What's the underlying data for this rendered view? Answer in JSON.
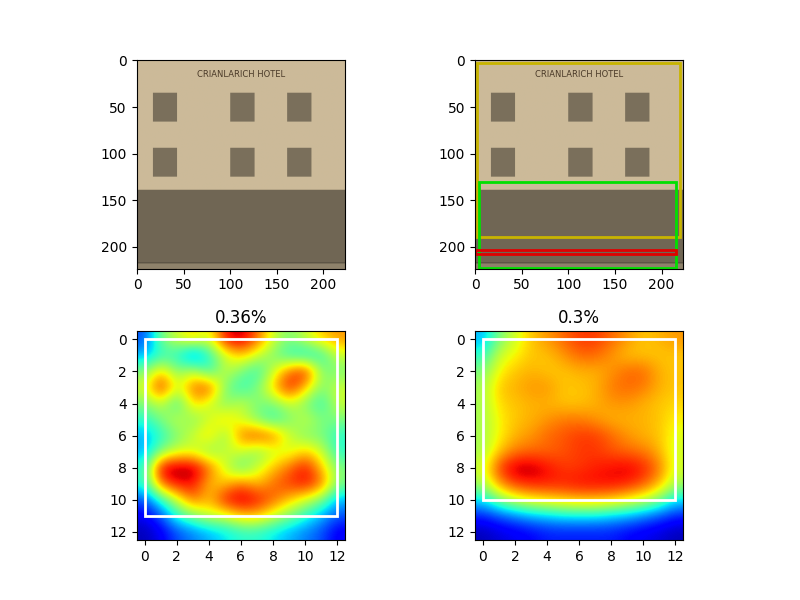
{
  "chart_data": [
    {
      "type": "image",
      "image_text": "CRIANLARICH HOTEL",
      "xlim": [
        -0.5,
        223.5
      ],
      "ylim": [
        223.5,
        -0.5
      ],
      "xticks": [
        0,
        50,
        100,
        150,
        200
      ],
      "yticks": [
        0,
        50,
        100,
        150,
        200
      ],
      "boxes": []
    },
    {
      "type": "image",
      "image_text": "CRIANLARICH HOTEL",
      "xlim": [
        -0.5,
        223.5
      ],
      "ylim": [
        223.5,
        -0.5
      ],
      "xticks": [
        0,
        50,
        100,
        150,
        200
      ],
      "yticks": [
        0,
        50,
        100,
        150,
        200
      ],
      "boxes": [
        {
          "x0": 2,
          "y0": 3,
          "x1": 220,
          "y1": 190,
          "color": "#c8b400"
        },
        {
          "x0": 4,
          "y0": 130,
          "x1": 215,
          "y1": 223,
          "color": "#00e000"
        },
        {
          "x0": 0,
          "y0": 203,
          "x1": 215,
          "y1": 208,
          "color": "#e00000"
        }
      ]
    },
    {
      "type": "heatmap",
      "title": "0.36%",
      "xlim": [
        -0.5,
        12.5
      ],
      "ylim": [
        12.5,
        -0.5
      ],
      "xticks": [
        0,
        2,
        4,
        6,
        8,
        10,
        12
      ],
      "yticks": [
        0,
        2,
        4,
        6,
        8,
        10,
        12
      ],
      "color_range": [
        0,
        1
      ],
      "rectangle": {
        "x0": 0,
        "y0": 0,
        "x1": 12,
        "y1": 11,
        "color": "white"
      },
      "cells": [
        [
          0.2,
          0.5,
          0.6,
          0.7,
          0.6,
          0.9,
          0.95,
          0.8,
          0.6,
          0.5,
          0.6,
          0.7,
          0.75
        ],
        [
          0.3,
          0.4,
          0.4,
          0.2,
          0.4,
          0.6,
          0.7,
          0.6,
          0.5,
          0.4,
          0.35,
          0.4,
          0.6
        ],
        [
          0.5,
          0.7,
          0.5,
          0.6,
          0.4,
          0.6,
          0.5,
          0.4,
          0.6,
          0.8,
          0.9,
          0.5,
          0.5
        ],
        [
          0.6,
          0.9,
          0.6,
          0.8,
          0.85,
          0.5,
          0.4,
          0.5,
          0.7,
          0.9,
          0.7,
          0.5,
          0.6
        ],
        [
          0.5,
          0.6,
          0.4,
          0.7,
          0.6,
          0.5,
          0.6,
          0.5,
          0.5,
          0.6,
          0.5,
          0.4,
          0.6
        ],
        [
          0.4,
          0.5,
          0.6,
          0.5,
          0.6,
          0.7,
          0.6,
          0.5,
          0.4,
          0.5,
          0.6,
          0.5,
          0.5
        ],
        [
          0.3,
          0.4,
          0.5,
          0.6,
          0.7,
          0.5,
          0.8,
          0.85,
          0.8,
          0.6,
          0.5,
          0.5,
          0.4
        ],
        [
          0.3,
          0.5,
          0.6,
          0.6,
          0.5,
          0.6,
          0.6,
          0.5,
          0.6,
          0.6,
          0.7,
          0.6,
          0.4
        ],
        [
          0.4,
          0.95,
          0.97,
          0.97,
          0.8,
          0.6,
          0.45,
          0.6,
          0.7,
          0.8,
          0.9,
          0.7,
          0.5
        ],
        [
          0.4,
          0.8,
          0.9,
          0.9,
          0.7,
          0.7,
          0.8,
          0.7,
          0.8,
          0.85,
          0.9,
          0.8,
          0.5
        ],
        [
          0.2,
          0.4,
          0.6,
          0.8,
          0.7,
          0.9,
          0.95,
          0.9,
          0.8,
          0.7,
          0.6,
          0.5,
          0.3
        ],
        [
          0.1,
          0.2,
          0.4,
          0.5,
          0.6,
          0.6,
          0.7,
          0.7,
          0.6,
          0.5,
          0.4,
          0.3,
          0.2
        ],
        [
          0.05,
          0.1,
          0.2,
          0.25,
          0.3,
          0.35,
          0.4,
          0.4,
          0.35,
          0.3,
          0.25,
          0.2,
          0.1
        ]
      ]
    },
    {
      "type": "heatmap",
      "title": "0.3%",
      "xlim": [
        -0.5,
        12.5
      ],
      "ylim": [
        12.5,
        -0.5
      ],
      "xticks": [
        0,
        2,
        4,
        6,
        8,
        10,
        12
      ],
      "yticks": [
        0,
        2,
        4,
        6,
        8,
        10,
        12
      ],
      "color_range": [
        0,
        1
      ],
      "rectangle": {
        "x0": 0,
        "y0": 0,
        "x1": 12,
        "y1": 10,
        "color": "white"
      },
      "cells": [
        [
          0.3,
          0.5,
          0.6,
          0.7,
          0.75,
          0.8,
          0.85,
          0.85,
          0.8,
          0.75,
          0.7,
          0.72,
          0.75
        ],
        [
          0.4,
          0.6,
          0.65,
          0.7,
          0.7,
          0.75,
          0.8,
          0.8,
          0.75,
          0.7,
          0.7,
          0.7,
          0.7
        ],
        [
          0.5,
          0.65,
          0.7,
          0.72,
          0.7,
          0.7,
          0.72,
          0.72,
          0.75,
          0.8,
          0.8,
          0.72,
          0.7
        ],
        [
          0.55,
          0.7,
          0.72,
          0.75,
          0.75,
          0.7,
          0.7,
          0.72,
          0.78,
          0.8,
          0.78,
          0.72,
          0.7
        ],
        [
          0.55,
          0.68,
          0.7,
          0.72,
          0.72,
          0.7,
          0.7,
          0.72,
          0.75,
          0.75,
          0.72,
          0.7,
          0.68
        ],
        [
          0.55,
          0.65,
          0.7,
          0.72,
          0.75,
          0.78,
          0.78,
          0.75,
          0.72,
          0.72,
          0.72,
          0.7,
          0.65
        ],
        [
          0.55,
          0.65,
          0.72,
          0.75,
          0.8,
          0.82,
          0.85,
          0.85,
          0.8,
          0.75,
          0.72,
          0.7,
          0.62
        ],
        [
          0.55,
          0.7,
          0.78,
          0.8,
          0.8,
          0.82,
          0.85,
          0.85,
          0.82,
          0.8,
          0.78,
          0.72,
          0.6
        ],
        [
          0.6,
          0.85,
          0.95,
          0.95,
          0.9,
          0.85,
          0.85,
          0.88,
          0.9,
          0.92,
          0.88,
          0.78,
          0.6
        ],
        [
          0.55,
          0.75,
          0.85,
          0.88,
          0.88,
          0.88,
          0.9,
          0.9,
          0.9,
          0.88,
          0.82,
          0.72,
          0.55
        ],
        [
          0.35,
          0.5,
          0.6,
          0.65,
          0.68,
          0.7,
          0.72,
          0.72,
          0.7,
          0.65,
          0.6,
          0.5,
          0.35
        ],
        [
          0.15,
          0.2,
          0.25,
          0.3,
          0.32,
          0.35,
          0.35,
          0.35,
          0.32,
          0.3,
          0.25,
          0.2,
          0.15
        ],
        [
          0.05,
          0.08,
          0.1,
          0.12,
          0.15,
          0.15,
          0.15,
          0.15,
          0.15,
          0.12,
          0.1,
          0.08,
          0.05
        ]
      ]
    }
  ]
}
